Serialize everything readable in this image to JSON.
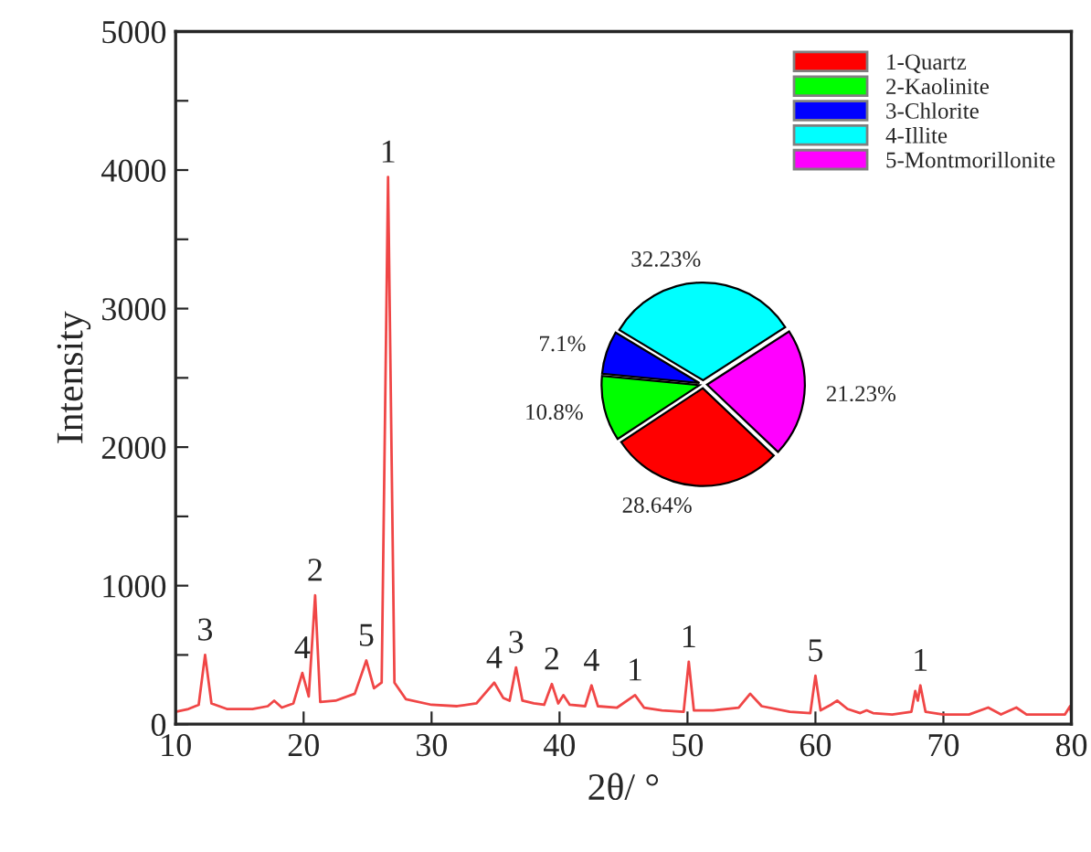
{
  "chart_data": [
    {
      "type": "line",
      "xlabel": "2θ/ °",
      "ylabel": "Intensity",
      "xlim": [
        10,
        80
      ],
      "ylim": [
        0,
        5000
      ],
      "xticks": [
        10,
        20,
        30,
        40,
        50,
        60,
        70,
        80
      ],
      "yticks": [
        0,
        {
          "value": 500,
          "label": null
        },
        1000,
        {
          "value": 1500,
          "label": null
        },
        2000,
        {
          "value": 2500,
          "label": null
        },
        3000,
        {
          "value": 3500,
          "label": null
        },
        4000,
        {
          "value": 4500,
          "label": null
        },
        5000
      ],
      "grid": false,
      "legend": false,
      "series": [
        {
          "color": "#f04646",
          "x": [
            10,
            11,
            11.8,
            12.3,
            12.8,
            14,
            16,
            17.2,
            17.7,
            18.3,
            19.2,
            19.9,
            20.4,
            20.9,
            21.3,
            22.5,
            24,
            24.9,
            25.5,
            26.1,
            26.6,
            27.1,
            28,
            30,
            32,
            33.5,
            34.9,
            35.6,
            36.1,
            36.6,
            37.1,
            38,
            38.8,
            39.4,
            39.9,
            40.3,
            40.8,
            42,
            42.5,
            43,
            44.5,
            45.9,
            46.6,
            48,
            49.7,
            50.1,
            50.5,
            52,
            54,
            54.9,
            55.8,
            58,
            59.6,
            60,
            60.4,
            61.2,
            61.7,
            62.5,
            63.5,
            64,
            64.5,
            66,
            67.5,
            67.8,
            68,
            68.2,
            68.6,
            70,
            72,
            73.5,
            74.5,
            75.7,
            76.5,
            78,
            79.5,
            79.9,
            80
          ],
          "values": [
            90,
            110,
            140,
            500,
            150,
            110,
            110,
            130,
            170,
            120,
            150,
            370,
            200,
            930,
            160,
            170,
            220,
            460,
            260,
            300,
            3950,
            300,
            180,
            140,
            130,
            150,
            300,
            190,
            170,
            410,
            170,
            150,
            140,
            290,
            150,
            210,
            140,
            130,
            280,
            130,
            120,
            210,
            120,
            100,
            90,
            450,
            100,
            100,
            120,
            220,
            130,
            90,
            80,
            350,
            100,
            140,
            170,
            110,
            80,
            100,
            80,
            70,
            90,
            240,
            170,
            280,
            90,
            70,
            70,
            120,
            70,
            120,
            70,
            70,
            70,
            130,
            70
          ]
        }
      ],
      "annotations": [
        {
          "text": "3",
          "x": 12.3,
          "y": 500
        },
        {
          "text": "4",
          "x": 19.9,
          "y": 370
        },
        {
          "text": "2",
          "x": 20.9,
          "y": 930
        },
        {
          "text": "5",
          "x": 24.9,
          "y": 460
        },
        {
          "text": "1",
          "x": 26.6,
          "y": 3950
        },
        {
          "text": "4",
          "x": 34.9,
          "y": 300
        },
        {
          "text": "3",
          "x": 36.6,
          "y": 410
        },
        {
          "text": "2",
          "x": 39.4,
          "y": 290
        },
        {
          "text": "4",
          "x": 42.5,
          "y": 280
        },
        {
          "text": "1",
          "x": 45.9,
          "y": 210
        },
        {
          "text": "1",
          "x": 50.1,
          "y": 450
        },
        {
          "text": "5",
          "x": 60,
          "y": 350
        },
        {
          "text": "1",
          "x": 68.2,
          "y": 280
        }
      ]
    },
    {
      "type": "pie",
      "categories": [
        "1-Quartz",
        "2-Kaolinite",
        "3-Chlorite",
        "4-Illite",
        "5-Montmorillonite"
      ],
      "values": [
        28.64,
        10.8,
        7.1,
        32.23,
        21.23
      ],
      "value_labels": [
        "28.64%",
        "10.8%",
        "7.1%",
        "32.23%",
        "21.23%"
      ],
      "colors": [
        "#ff0000",
        "#00ff00",
        "#0000ff",
        "#00ffff",
        "#ff00ff"
      ],
      "legend": "top right"
    }
  ]
}
